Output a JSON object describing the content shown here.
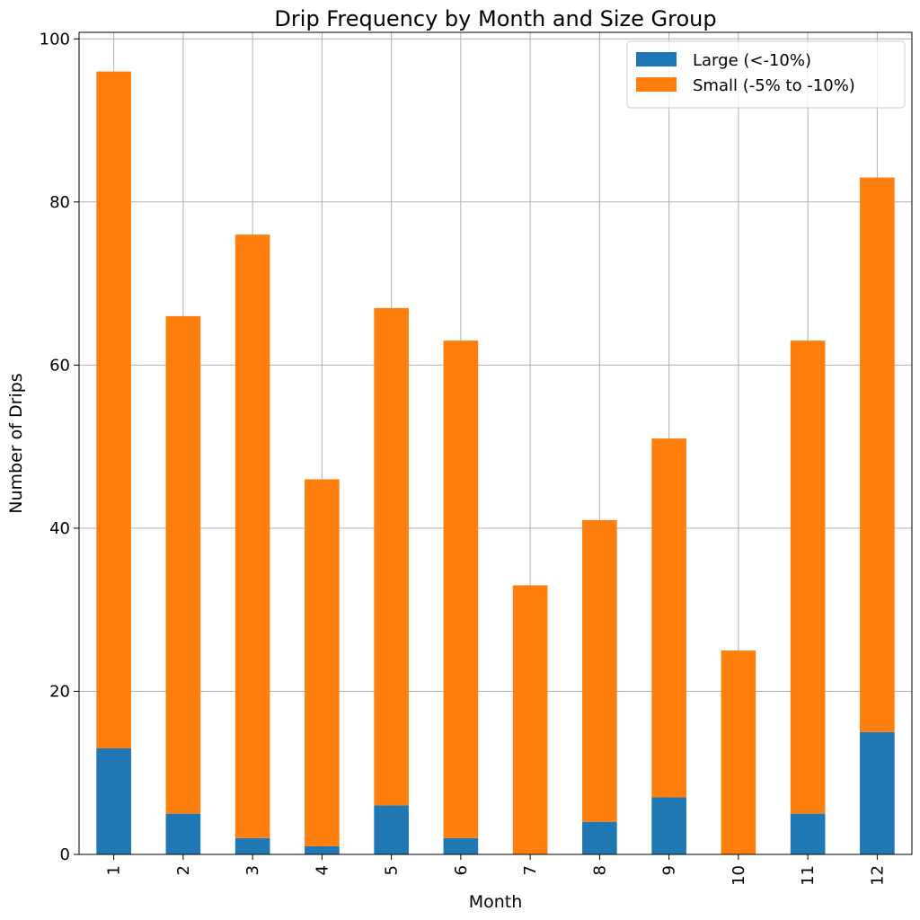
{
  "chart_data": {
    "type": "bar",
    "stacked": true,
    "title": "Drip Frequency by Month and Size Group",
    "xlabel": "Month",
    "ylabel": "Number of Drips",
    "categories": [
      "1",
      "2",
      "3",
      "4",
      "5",
      "6",
      "7",
      "8",
      "9",
      "10",
      "11",
      "12"
    ],
    "series": [
      {
        "name": "Large (<-10%)",
        "color": "#1f77b4",
        "values": [
          13,
          5,
          2,
          1,
          6,
          2,
          0,
          4,
          7,
          0,
          5,
          15
        ]
      },
      {
        "name": "Small (-5% to -10%)",
        "color": "#ff7f0e",
        "values": [
          83,
          61,
          74,
          45,
          61,
          61,
          33,
          37,
          44,
          25,
          58,
          68
        ]
      }
    ],
    "ylim": [
      0,
      100.8
    ],
    "yticks": [
      0,
      20,
      40,
      60,
      80,
      100
    ],
    "grid": true,
    "legend_position": "top-right",
    "x_tick_rotation": 90
  }
}
